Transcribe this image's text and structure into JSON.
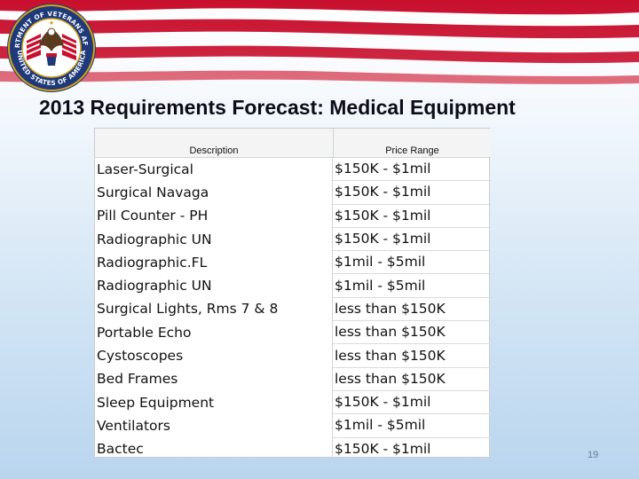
{
  "slide": {
    "title": "2013 Requirements Forecast: Medical Equipment",
    "page_number": "19",
    "seal_text_top": "DEPARTMENT OF VETERANS AFFAIRS",
    "seal_text_bottom": "UNITED STATES OF AMERICA"
  },
  "table": {
    "headers": {
      "description": "Description",
      "price_range": "Price Range"
    },
    "rows": [
      {
        "description": "Laser-Surgical",
        "price_range": "$150K - $1mil"
      },
      {
        "description": "Surgical Navaga",
        "price_range": "$150K - $1mil"
      },
      {
        "description": "Pill Counter - PH",
        "price_range": "$150K - $1mil"
      },
      {
        "description": "Radiographic UN",
        "price_range": "$150K - $1mil"
      },
      {
        "description": "Radiographic.FL",
        "price_range": "$1mil - $5mil"
      },
      {
        "description": "Radiographic UN",
        "price_range": "$1mil - $5mil"
      },
      {
        "description": "Surgical Lights, Rms 7 & 8",
        "price_range": "less than $150K"
      },
      {
        "description": "Portable Echo",
        "price_range": "less than $150K"
      },
      {
        "description": "Cystoscopes",
        "price_range": "less than $150K"
      },
      {
        "description": "Bed Frames",
        "price_range": "less than $150K"
      },
      {
        "description": "Sleep Equipment",
        "price_range": "$150K - $1mil"
      },
      {
        "description": "Ventilators",
        "price_range": "$1mil - $5mil"
      },
      {
        "description": "Bactec",
        "price_range": "$150K - $1mil"
      }
    ]
  },
  "colors": {
    "flag_red": "#c8102e",
    "flag_white": "#ffffff",
    "seal_blue": "#1f3a7a",
    "seal_gold": "#d4a017",
    "title_text": "#0d0d1a",
    "page_number": "#6b7d96"
  }
}
